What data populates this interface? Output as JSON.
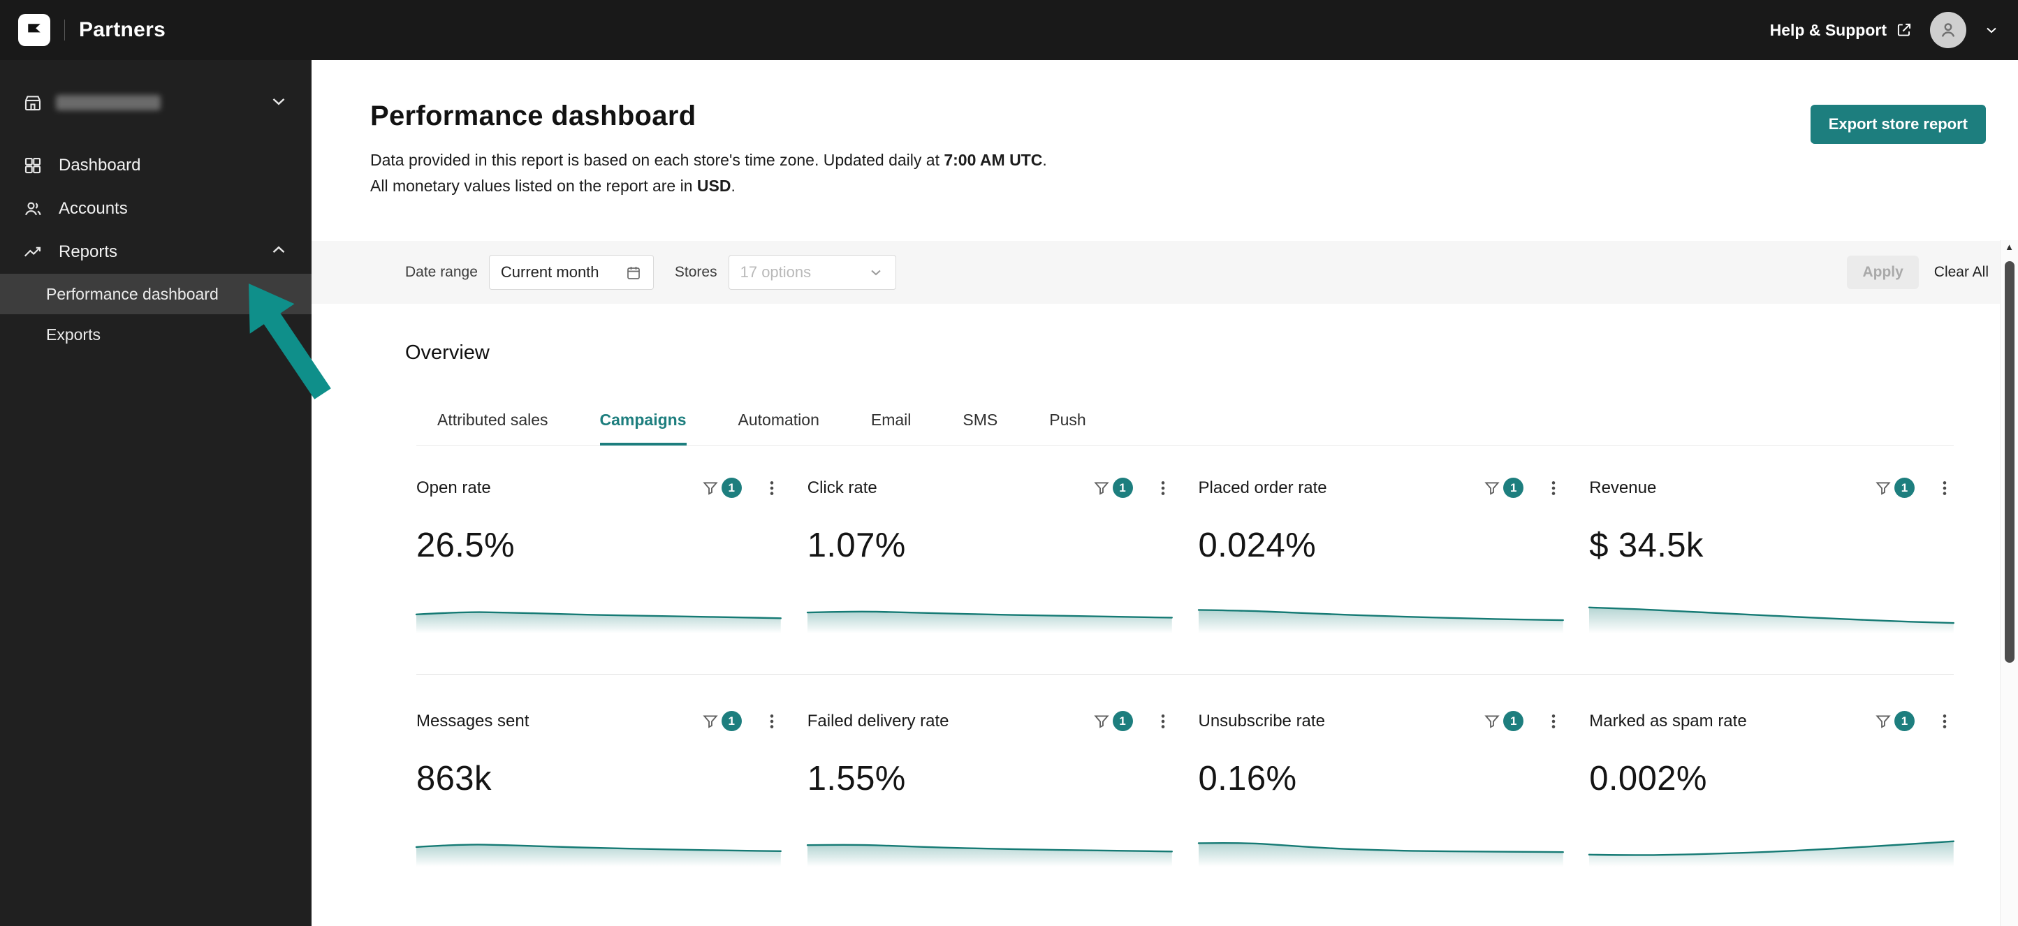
{
  "theme": {
    "accent": "#1d7e7e",
    "spark_stroke": "#157a74",
    "spark_fill": "#157a74",
    "annotation_arrow": "#0f8f8a"
  },
  "topbar": {
    "brand": "Partners",
    "help_label": "Help & Support"
  },
  "sidebar": {
    "items": [
      {
        "label": "Dashboard"
      },
      {
        "label": "Accounts"
      },
      {
        "label": "Reports",
        "expanded": true
      }
    ],
    "reports_children": [
      {
        "label": "Performance dashboard",
        "active": true
      },
      {
        "label": "Exports"
      }
    ]
  },
  "header": {
    "title": "Performance dashboard",
    "line1_prefix": "Data provided in this report is based on each store's time zone. Updated daily at ",
    "line1_bold": "7:00 AM UTC",
    "line1_suffix": ".",
    "line2_prefix": "All monetary values listed on the report are in ",
    "line2_bold": "USD",
    "line2_suffix": ".",
    "export_button": "Export store report"
  },
  "filters": {
    "date_range_label": "Date range",
    "date_range_value": "Current month",
    "stores_label": "Stores",
    "stores_placeholder": "17 options",
    "apply_label": "Apply",
    "clear_all_label": "Clear All"
  },
  "overview": {
    "title": "Overview",
    "tabs": [
      {
        "label": "Attributed sales"
      },
      {
        "label": "Campaigns",
        "active": true
      },
      {
        "label": "Automation"
      },
      {
        "label": "Email"
      },
      {
        "label": "SMS"
      },
      {
        "label": "Push"
      }
    ],
    "cards": [
      {
        "title": "Open rate",
        "value": "26.5%",
        "filter_badge": "1",
        "spark": [
          0.52,
          0.6,
          0.58,
          0.54,
          0.5,
          0.48,
          0.45,
          0.43,
          0.4
        ]
      },
      {
        "title": "Click rate",
        "value": "1.07%",
        "filter_badge": "1",
        "spark": [
          0.58,
          0.62,
          0.59,
          0.55,
          0.52,
          0.49,
          0.47,
          0.44,
          0.42
        ]
      },
      {
        "title": "Placed order rate",
        "value": "0.024%",
        "filter_badge": "1",
        "spark": [
          0.66,
          0.64,
          0.58,
          0.52,
          0.47,
          0.43,
          0.39,
          0.36,
          0.34
        ]
      },
      {
        "title": "Revenue",
        "value": "$ 34.5k",
        "filter_badge": "1",
        "spark": [
          0.74,
          0.69,
          0.62,
          0.55,
          0.48,
          0.41,
          0.35,
          0.29,
          0.25
        ]
      },
      {
        "title": "Messages sent",
        "value": "863k",
        "filter_badge": "1",
        "spark": [
          0.54,
          0.63,
          0.6,
          0.55,
          0.51,
          0.48,
          0.45,
          0.43,
          0.41
        ]
      },
      {
        "title": "Failed delivery rate",
        "value": "1.55%",
        "filter_badge": "1",
        "spark": [
          0.6,
          0.62,
          0.57,
          0.52,
          0.49,
          0.46,
          0.44,
          0.42,
          0.4
        ]
      },
      {
        "title": "Unsubscribe rate",
        "value": "0.16%",
        "filter_badge": "1",
        "spark": [
          0.66,
          0.68,
          0.58,
          0.49,
          0.44,
          0.41,
          0.4,
          0.39,
          0.38
        ]
      },
      {
        "title": "Marked as spam rate",
        "value": "0.002%",
        "filter_badge": "1",
        "spark": [
          0.3,
          0.28,
          0.3,
          0.34,
          0.39,
          0.46,
          0.54,
          0.63,
          0.72
        ]
      }
    ]
  }
}
